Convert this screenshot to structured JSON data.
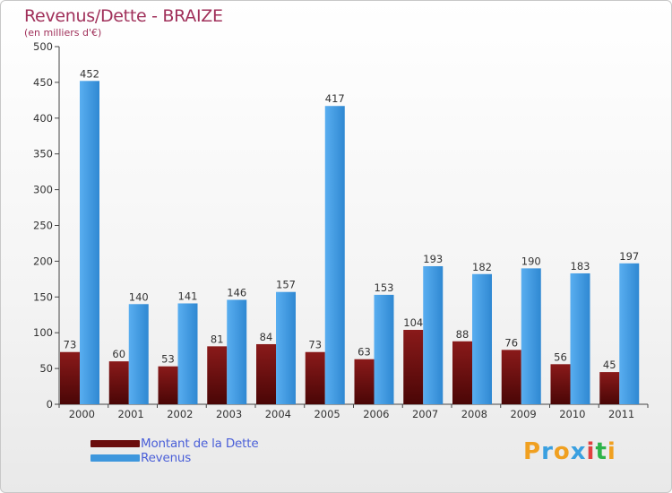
{
  "header": {
    "title": "Revenus/Dette - BRAIZE",
    "subtitle": "(en milliers d'€)"
  },
  "colors": {
    "dette": "#6b0d0d",
    "revenus": "#3e97dd",
    "title": "#a0305a",
    "legend_text": "#4a5fd8"
  },
  "legend": {
    "items": [
      {
        "label": "Montant de la Dette",
        "color": "#6b0d0d"
      },
      {
        "label": "Revenus",
        "color": "#3e97dd"
      }
    ]
  },
  "logo": {
    "text": "Proxiti"
  },
  "chart_data": {
    "type": "bar",
    "title": "Revenus/Dette - BRAIZE",
    "subtitle": "(en milliers d'€)",
    "ylim": [
      0,
      500
    ],
    "yticks": [
      0,
      50,
      100,
      150,
      200,
      250,
      300,
      350,
      400,
      450,
      500
    ],
    "grid": false,
    "legend_position": "bottom-left",
    "categories": [
      "2000",
      "2001",
      "2002",
      "2003",
      "2004",
      "2005",
      "2006",
      "2007",
      "2008",
      "2009",
      "2010",
      "2011"
    ],
    "series": [
      {
        "name": "Montant de la Dette",
        "color": "#6b0d0d",
        "values": [
          73,
          60,
          53,
          81,
          84,
          73,
          63,
          104,
          88,
          76,
          56,
          45
        ]
      },
      {
        "name": "Revenus",
        "color": "#3e97dd",
        "values": [
          452,
          140,
          141,
          146,
          157,
          417,
          153,
          193,
          182,
          190,
          183,
          197
        ]
      }
    ]
  }
}
